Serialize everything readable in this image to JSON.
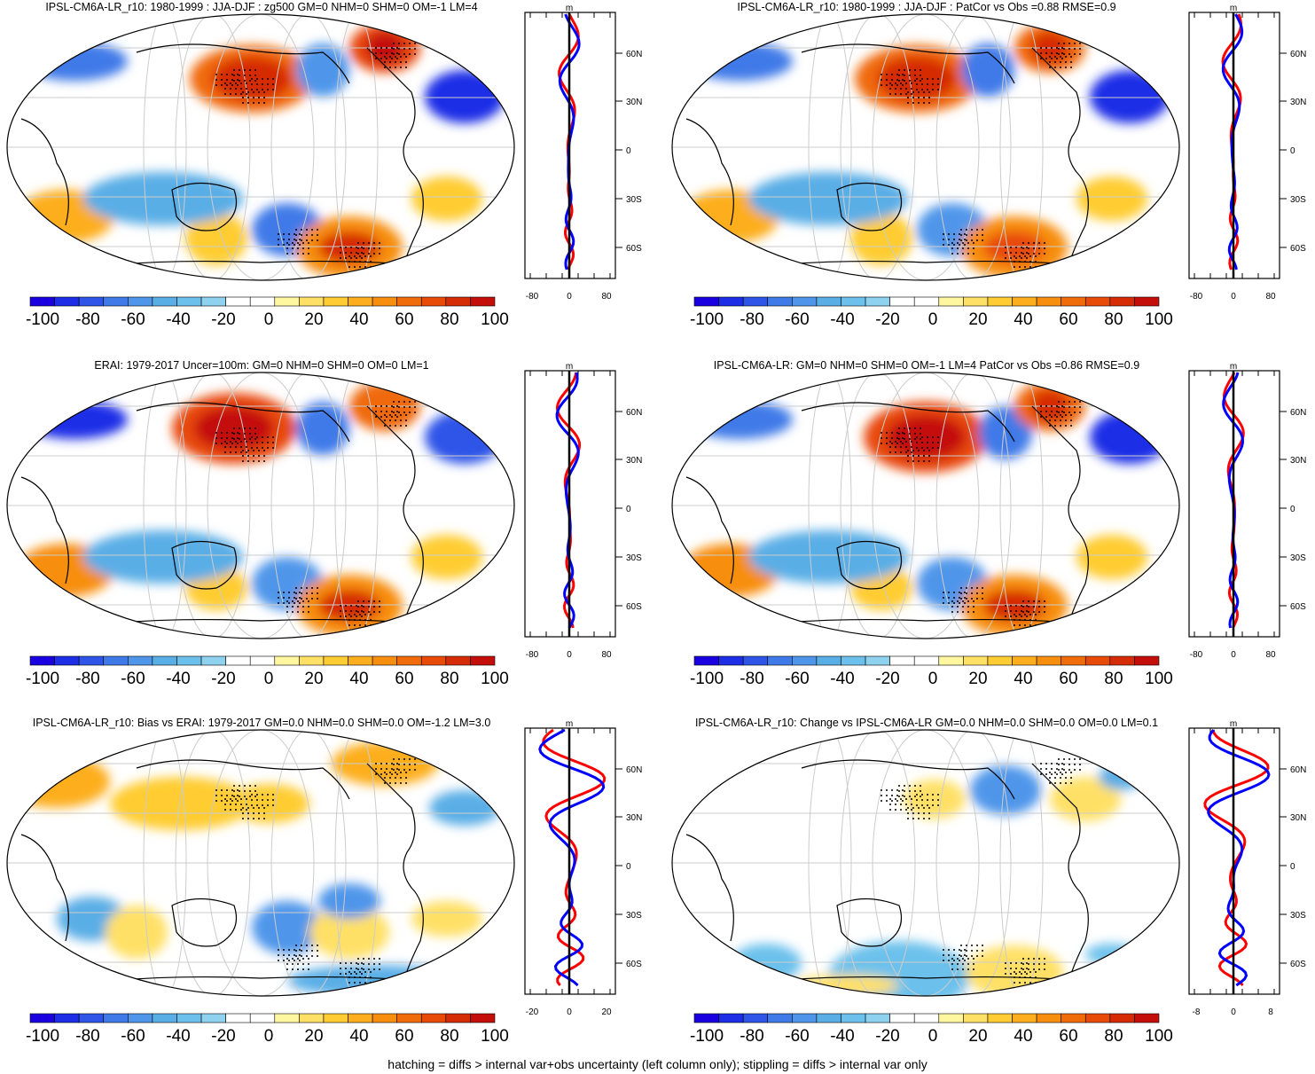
{
  "colors": {
    "ocean_grid": "#cccccc",
    "outline": "#000000",
    "profile_nh": "#ff0000",
    "profile_sh": "#0000ff",
    "palette": [
      "#1a00e0",
      "#1d2ee6",
      "#2e55e8",
      "#3f7ae8",
      "#4f96ea",
      "#5aaee6",
      "#6cc1ec",
      "#8fd2f0",
      "#ffffff",
      "#ffffff",
      "#fff6a0",
      "#ffe066",
      "#ffcc33",
      "#fdae1e",
      "#f78e0e",
      "#f06b0a",
      "#e84a08",
      "#d62c06",
      "#c40e0a"
    ]
  },
  "colorbar": {
    "labels": [
      "-100",
      "-80",
      "-60",
      "-40",
      "-20",
      "0",
      "20",
      "40",
      "60",
      "80",
      "100"
    ]
  },
  "lat_labels": [
    "60N",
    "30N",
    "0",
    "30S",
    "60S"
  ],
  "unit_label": "m",
  "panels": [
    {
      "title": "IPSL-CM6A-LR_r10: 1980-1999 : JJA-DJF : zg500 GM=0 NHM=0 SHM=0 OM=-1 LM=4",
      "x_ticks": [
        "-80",
        "0",
        "80"
      ]
    },
    {
      "title": "IPSL-CM6A-LR_r10: 1980-1999 : JJA-DJF : PatCor vs Obs =0.88 RMSE=0.9",
      "x_ticks": [
        "-80",
        "0",
        "80"
      ]
    },
    {
      "title": "ERAI: 1979-2017 Uncer=100m: GM=0 NHM=0 SHM=0 OM=0 LM=1",
      "x_ticks": [
        "-80",
        "0",
        "80"
      ]
    },
    {
      "title": "IPSL-CM6A-LR: GM=0 NHM=0 SHM=0 OM=-1 LM=4 PatCor vs Obs =0.86 RMSE=0.9",
      "x_ticks": [
        "-80",
        "0",
        "80"
      ]
    },
    {
      "title": "IPSL-CM6A-LR_r10: Bias vs ERAI: 1979-2017 GM=0.0 NHM=0.0 SHM=0.0 OM=-1.2 LM=3.0",
      "x_ticks": [
        "-20",
        "0",
        "20"
      ]
    },
    {
      "title": "IPSL-CM6A-LR_r10: Change vs IPSL-CM6A-LR GM=0.0 NHM=0.0 SHM=0.0 OM=0.0 LM=0.1",
      "x_ticks": [
        "-8",
        "0",
        "8"
      ]
    }
  ],
  "footer": "hatching = diffs > internal var+obs uncertainty (left column only); stippling = diffs > internal var only"
}
